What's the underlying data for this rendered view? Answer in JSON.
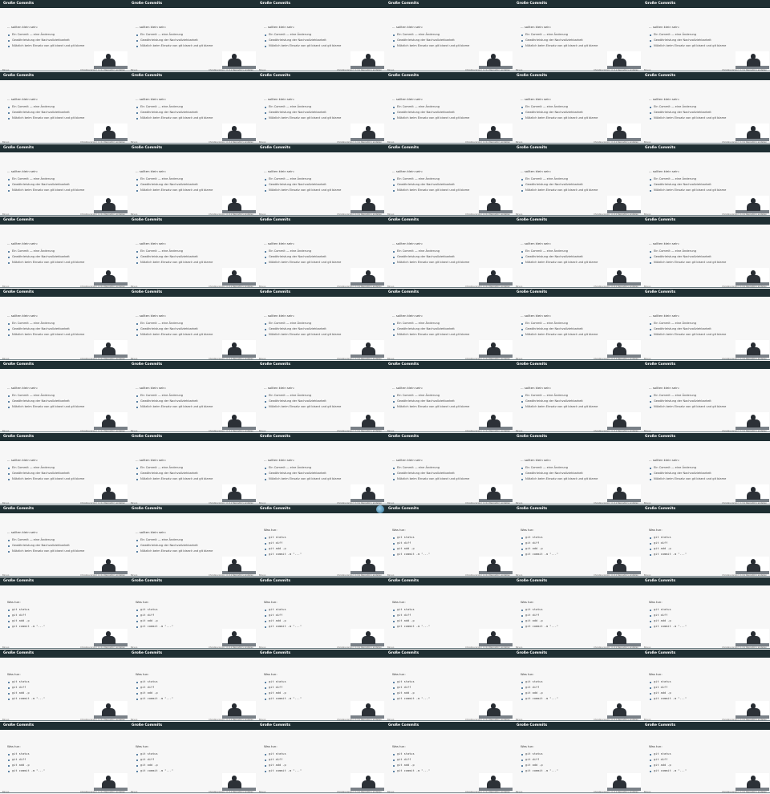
{
  "slide_common": {
    "header_title": "Große Commits",
    "footer_left": "Biruyo",
    "footer_right": "Christina Grigo | in 4.x Repository erstellen"
  },
  "slide_types": {
    "dev": {
      "heading": "... sollten klein sein:",
      "bullets": [
        "Ein Commit — eine Änderung",
        "Gewährleistung der Nachvollziehbarkeit",
        "Nützlich beim Einsatz von git bisect und git blame"
      ]
    },
    "git": {
      "heading": "Was tun:",
      "bullets": [
        "git status",
        "git diff",
        "git add -p",
        "git commit -m \"...\""
      ]
    }
  },
  "grid": {
    "columns": 6,
    "rows": 11,
    "frame_kinds": [
      "dev",
      "dev",
      "dev",
      "dev",
      "dev",
      "dev",
      "dev",
      "dev",
      "dev",
      "dev",
      "dev",
      "dev",
      "dev",
      "dev",
      "dev",
      "dev",
      "dev",
      "dev",
      "dev",
      "dev",
      "dev",
      "dev",
      "dev",
      "dev",
      "dev",
      "dev",
      "dev",
      "dev",
      "dev",
      "dev",
      "dev",
      "dev",
      "dev",
      "dev",
      "dev",
      "dev",
      "dev",
      "dev",
      "dev",
      "dev",
      "dev",
      "dev",
      "dev",
      "dev",
      "git",
      "git",
      "git",
      "git",
      "git",
      "git",
      "git",
      "git",
      "git",
      "git",
      "git",
      "git",
      "git",
      "git",
      "git",
      "git",
      "git",
      "git",
      "git",
      "git",
      "git",
      "git"
    ]
  },
  "colors": {
    "header_bg": "#1f2f33",
    "slide_bg": "#f7f7f7",
    "bullet": "#2a5d8a"
  },
  "icons": {
    "cursor": "cursor-highlight-icon"
  }
}
